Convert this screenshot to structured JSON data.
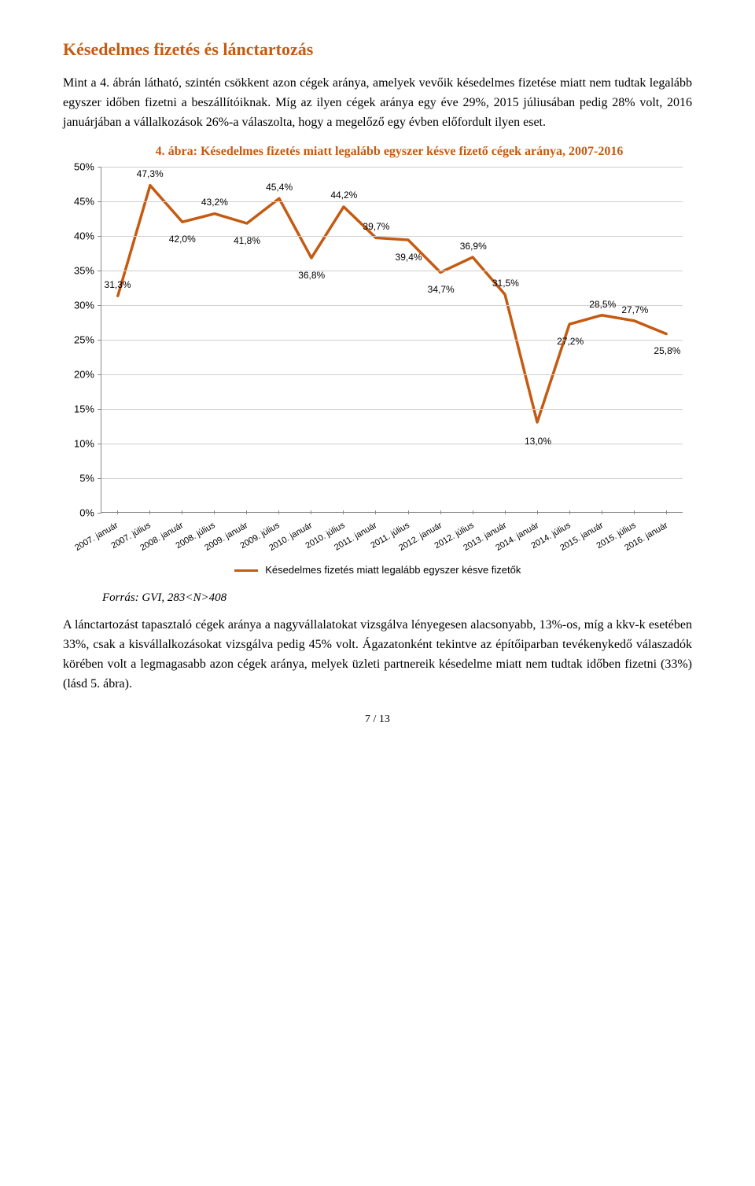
{
  "section_title": "Késedelmes fizetés és lánctartozás",
  "para1": "Mint a 4. ábrán látható, szintén csökkent azon cégek aránya, amelyek vevőik késedelmes fizetése miatt nem tudtak legalább egyszer időben fizetni a beszállítóiknak. Míg az ilyen cégek aránya egy éve 29%, 2015 júliusában pedig 28% volt, 2016 januárjában a vállalkozások 26%-a válaszolta, hogy a megelőző egy évben előfordult ilyen eset.",
  "chart": {
    "title": "4. ábra: Késedelmes fizetés miatt legalább egyszer késve fizető cégek aránya, 2007-2016",
    "type": "line",
    "ylim": [
      0,
      50
    ],
    "ytick_step": 5,
    "y_ticks": [
      "0%",
      "5%",
      "10%",
      "15%",
      "20%",
      "25%",
      "30%",
      "35%",
      "40%",
      "45%",
      "50%"
    ],
    "x_labels": [
      "2007. január",
      "2007. július",
      "2008. január",
      "2008. július",
      "2009. január",
      "2009. július",
      "2010. január",
      "2010. július",
      "2011. január",
      "2011. július",
      "2012. január",
      "2012. július",
      "2013. január",
      "2014. január",
      "2014. július",
      "2015. január",
      "2015. július",
      "2016. január"
    ],
    "values": [
      31.3,
      47.3,
      42.0,
      43.2,
      41.8,
      45.4,
      36.8,
      44.2,
      39.7,
      39.4,
      34.7,
      36.9,
      31.5,
      13.0,
      27.2,
      28.5,
      27.7,
      25.8
    ],
    "data_labels": [
      "31,3%",
      "47,3%",
      "42,0%",
      "43,2%",
      "41,8%",
      "45,4%",
      "36,8%",
      "44,2%",
      "39,7%",
      "39,4%",
      "34,7%",
      "36,9%",
      "31,5%",
      "13,0%",
      "27,2%",
      "28,5%",
      "27,7%",
      "25,8%"
    ],
    "label_offsets_y": [
      -8,
      -8,
      14,
      -8,
      14,
      -8,
      14,
      -8,
      -8,
      14,
      14,
      -8,
      -8,
      16,
      14,
      -8,
      -8,
      14
    ],
    "line_color": "#c55a11",
    "line_width": 3.5,
    "grid_color": "#d0d0d0",
    "axis_color": "#888888",
    "label_fontsize": 12,
    "tick_fontsize": 13,
    "legend_label": "Késedelmes fizetés miatt legalább egyszer késve fizetők"
  },
  "source": "Forrás: GVI, 283<N>408",
  "para2": "A lánctartozást tapasztaló cégek aránya a nagyvállalatokat vizsgálva lényegesen alacsonyabb, 13%-os, míg a kkv-k esetében 33%, csak a kisvállalkozásokat vizsgálva pedig 45% volt. Ágazatonként tekintve az építőiparban tevékenykedő válaszadók körében volt a legmagasabb azon cégek aránya, melyek üzleti partnereik késedelme miatt nem tudtak időben fizetni (33%) (lásd 5. ábra).",
  "page_num": "7 / 13"
}
